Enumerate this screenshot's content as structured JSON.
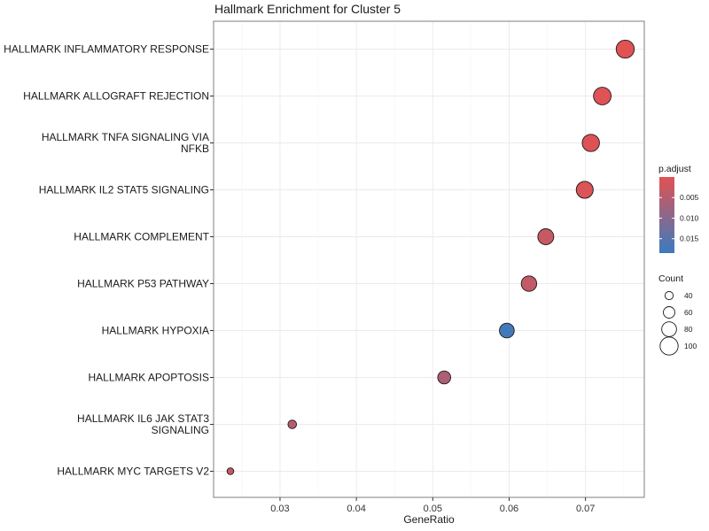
{
  "chart_data": {
    "type": "scatter",
    "title": "Hallmark Enrichment for Cluster 5",
    "xlabel": "GeneRatio",
    "ylabel": "",
    "xlim": [
      0.0213,
      0.0777
    ],
    "x_ticks": [
      "0.03",
      "0.04",
      "0.05",
      "0.06",
      "0.07"
    ],
    "x_tick_values": [
      0.03,
      0.04,
      0.05,
      0.06,
      0.07
    ],
    "grid": true,
    "points": [
      {
        "term_lines": [
          "HALLMARK INFLAMMATORY RESPONSE"
        ],
        "x": 0.0752,
        "count": 100,
        "p_adjust": 0.0001
      },
      {
        "term_lines": [
          "HALLMARK ALLOGRAFT REJECTION"
        ],
        "x": 0.0722,
        "count": 97,
        "p_adjust": 0.0004
      },
      {
        "term_lines": [
          "HALLMARK TNFA SIGNALING VIA",
          "NFKB"
        ],
        "x": 0.0707,
        "count": 95,
        "p_adjust": 0.0005
      },
      {
        "term_lines": [
          "HALLMARK IL2 STAT5 SIGNALING"
        ],
        "x": 0.0699,
        "count": 93,
        "p_adjust": 0.0008
      },
      {
        "term_lines": [
          "HALLMARK COMPLEMENT"
        ],
        "x": 0.0648,
        "count": 87,
        "p_adjust": 0.003
      },
      {
        "term_lines": [
          "HALLMARK P53 PATHWAY"
        ],
        "x": 0.0626,
        "count": 84,
        "p_adjust": 0.0035
      },
      {
        "term_lines": [
          "HALLMARK HYPOXIA"
        ],
        "x": 0.0597,
        "count": 80,
        "p_adjust": 0.0175
      },
      {
        "term_lines": [
          "HALLMARK APOPTOSIS"
        ],
        "x": 0.0515,
        "count": 69,
        "p_adjust": 0.006
      },
      {
        "term_lines": [
          "HALLMARK IL6 JAK STAT3",
          "SIGNALING"
        ],
        "x": 0.0316,
        "count": 42,
        "p_adjust": 0.005
      },
      {
        "term_lines": [
          "HALLMARK MYC TARGETS V2"
        ],
        "x": 0.0235,
        "count": 31,
        "p_adjust": 0.003
      }
    ],
    "color_legend": {
      "title": "p.adjust",
      "ticks": [
        "0.005",
        "0.010",
        "0.015"
      ],
      "tick_values": [
        0.005,
        0.01,
        0.015
      ],
      "range": [
        0.0,
        0.0185
      ],
      "low_color": "#e25252",
      "high_color": "#3a7bbf"
    },
    "size_legend": {
      "title": "Count",
      "values": [
        40,
        60,
        80,
        100
      ],
      "labels": [
        "40",
        "60",
        "80",
        "100"
      ]
    },
    "colors": {
      "panel_border": "#7f7f7f",
      "grid_major": "#ebebeb",
      "grid_minor": "#f5f5f5"
    }
  }
}
